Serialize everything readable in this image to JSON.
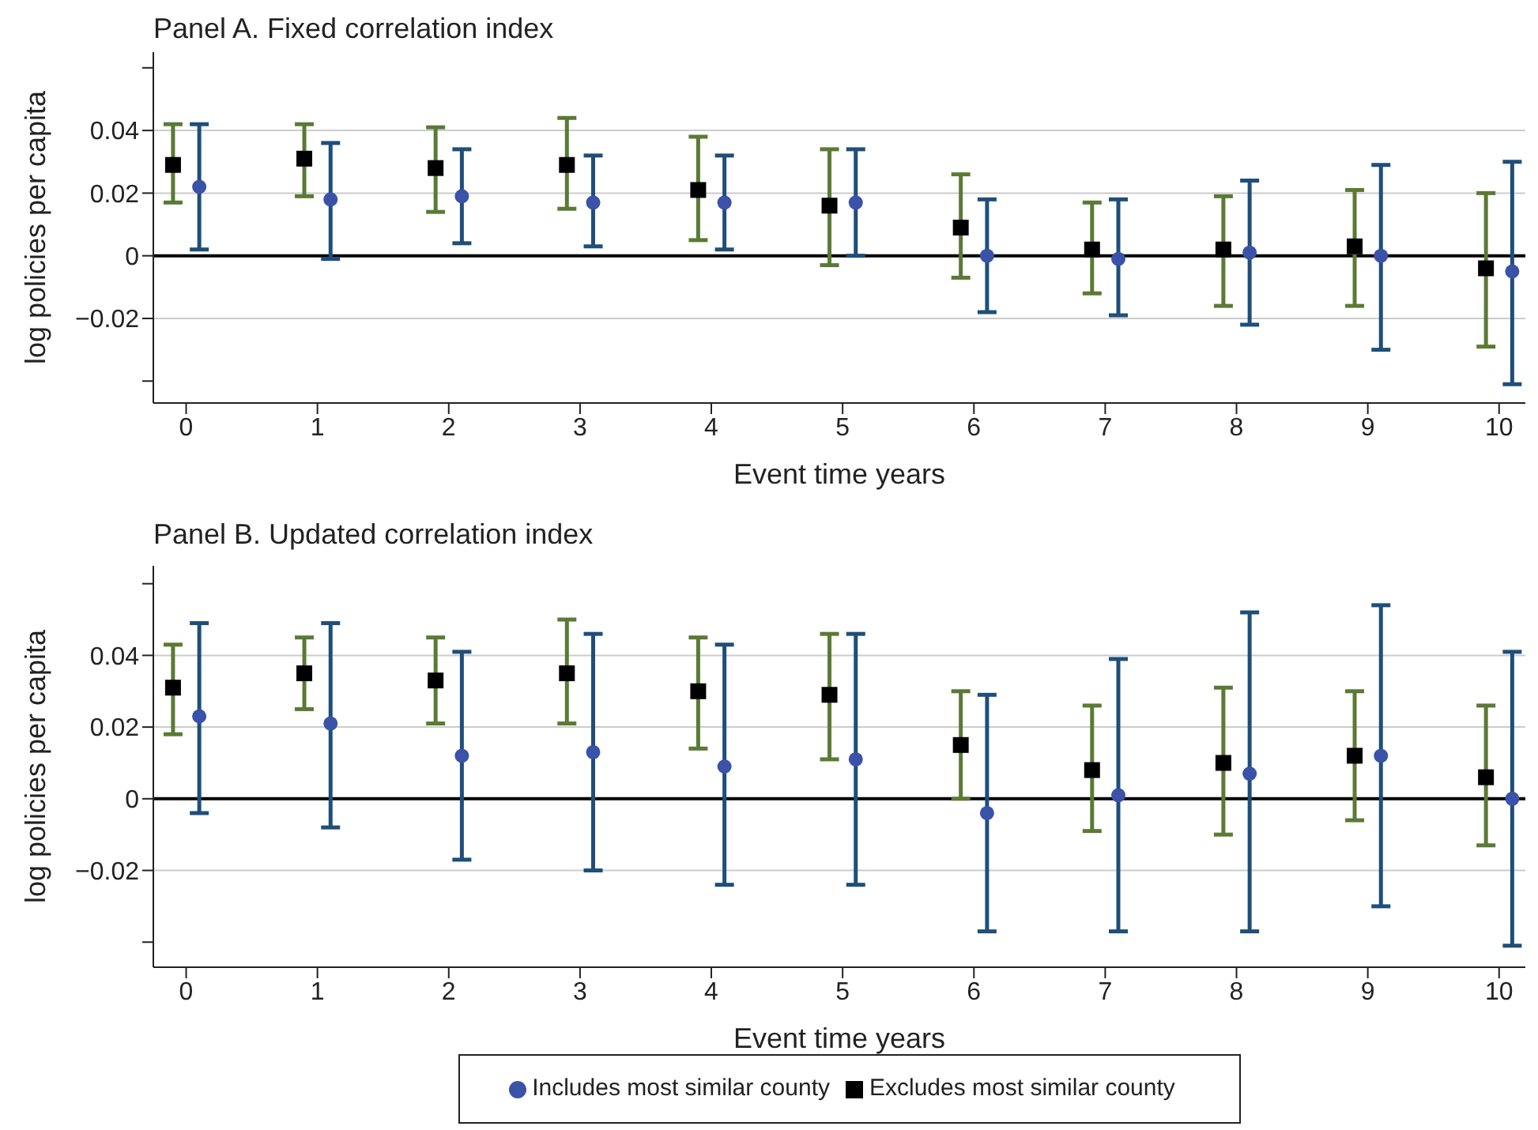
{
  "chart_data": [
    {
      "type": "scatter",
      "title": "Panel A. Fixed correlation index",
      "xlabel": "Event time years",
      "ylabel": "log policies per capita",
      "xlim": [
        -0.25,
        10.2
      ],
      "xticks": [
        0,
        1,
        2,
        3,
        4,
        5,
        6,
        7,
        8,
        9,
        10
      ],
      "ylim": [
        -0.047,
        0.065
      ],
      "yticks": [
        {
          "value": 0.06,
          "label": null
        },
        0.04,
        0.02,
        0,
        {
          "value": -0.02,
          "label": "−0.02"
        },
        {
          "value": -0.04,
          "label": null
        }
      ],
      "grid": "y",
      "legend": false,
      "ref_lines": [
        {
          "axis": "y",
          "value": 0,
          "color": "#000000"
        }
      ],
      "series": [
        {
          "color": "#3a52a8",
          "marker": "circle",
          "x": [
            0.1,
            1.1,
            2.1,
            3.1,
            4.1,
            5.1,
            6.1,
            7.1,
            8.1,
            9.1,
            10.1
          ],
          "values": [
            0.022,
            0.018,
            0.019,
            0.017,
            0.017,
            0.017,
            0.0,
            -0.001,
            0.001,
            0.0,
            -0.005
          ],
          "errors": [
            [
              0.002,
              0.042
            ],
            [
              -0.001,
              0.036
            ],
            [
              0.004,
              0.034
            ],
            [
              0.003,
              0.032
            ],
            [
              0.002,
              0.032
            ],
            [
              0.0,
              0.034
            ],
            [
              -0.018,
              0.018
            ],
            [
              -0.019,
              0.018
            ],
            [
              -0.022,
              0.024
            ],
            [
              -0.03,
              0.029
            ],
            [
              -0.041,
              0.03
            ]
          ]
        },
        {
          "color": "#000000",
          "marker": "square",
          "x": [
            -0.1,
            0.9,
            1.9,
            2.9,
            3.9,
            4.9,
            5.9,
            6.9,
            7.9,
            8.9,
            9.9
          ],
          "values": [
            0.029,
            0.031,
            0.028,
            0.029,
            0.021,
            0.016,
            0.009,
            0.002,
            0.002,
            0.003,
            -0.004
          ],
          "errors": [
            [
              0.017,
              0.042
            ],
            [
              0.019,
              0.042
            ],
            [
              0.014,
              0.041
            ],
            [
              0.015,
              0.044
            ],
            [
              0.005,
              0.038
            ],
            [
              -0.003,
              0.034
            ],
            [
              -0.007,
              0.026
            ],
            [
              -0.012,
              0.017
            ],
            [
              -0.016,
              0.019
            ],
            [
              -0.016,
              0.021
            ],
            [
              -0.029,
              0.02
            ]
          ]
        }
      ]
    },
    {
      "type": "scatter",
      "title": "Panel B. Updated correlation index",
      "xlabel": "Event time years",
      "ylabel": "log policies per capita",
      "xlim": [
        -0.25,
        10.2
      ],
      "xticks": [
        0,
        1,
        2,
        3,
        4,
        5,
        6,
        7,
        8,
        9,
        10
      ],
      "ylim": [
        -0.047,
        0.065
      ],
      "yticks": [
        {
          "value": 0.06,
          "label": null
        },
        0.04,
        0.02,
        0,
        {
          "value": -0.02,
          "label": "−0.02"
        },
        {
          "value": -0.04,
          "label": null
        }
      ],
      "grid": "y",
      "legend": "bottom",
      "ref_lines": [
        {
          "axis": "y",
          "value": 0,
          "color": "#000000"
        }
      ],
      "series": [
        {
          "name": "Includes most similar county",
          "color": "#3a52a8",
          "marker": "circle",
          "x": [
            0.1,
            1.1,
            2.1,
            3.1,
            4.1,
            5.1,
            6.1,
            7.1,
            8.1,
            9.1,
            10.1
          ],
          "values": [
            0.023,
            0.021,
            0.012,
            0.013,
            0.009,
            0.011,
            -0.004,
            0.001,
            0.007,
            0.012,
            0.0
          ],
          "errors": [
            [
              -0.004,
              0.049
            ],
            [
              -0.008,
              0.049
            ],
            [
              -0.017,
              0.041
            ],
            [
              -0.02,
              0.046
            ],
            [
              -0.024,
              0.043
            ],
            [
              -0.024,
              0.046
            ],
            [
              -0.037,
              0.029
            ],
            [
              -0.037,
              0.039
            ],
            [
              -0.037,
              0.052
            ],
            [
              -0.03,
              0.054
            ],
            [
              -0.041,
              0.041
            ]
          ]
        },
        {
          "name": "Excludes most similar county",
          "color": "#000000",
          "marker": "square",
          "x": [
            -0.1,
            0.9,
            1.9,
            2.9,
            3.9,
            4.9,
            5.9,
            6.9,
            7.9,
            8.9,
            9.9
          ],
          "values": [
            0.031,
            0.035,
            0.033,
            0.035,
            0.03,
            0.029,
            0.015,
            0.008,
            0.01,
            0.012,
            0.006
          ],
          "errors": [
            [
              0.018,
              0.043
            ],
            [
              0.025,
              0.045
            ],
            [
              0.021,
              0.045
            ],
            [
              0.021,
              0.05
            ],
            [
              0.014,
              0.045
            ],
            [
              0.011,
              0.046
            ],
            [
              0.0,
              0.03
            ],
            [
              -0.009,
              0.026
            ],
            [
              -0.01,
              0.031
            ],
            [
              -0.006,
              0.03
            ],
            [
              -0.013,
              0.026
            ]
          ]
        }
      ]
    }
  ]
}
